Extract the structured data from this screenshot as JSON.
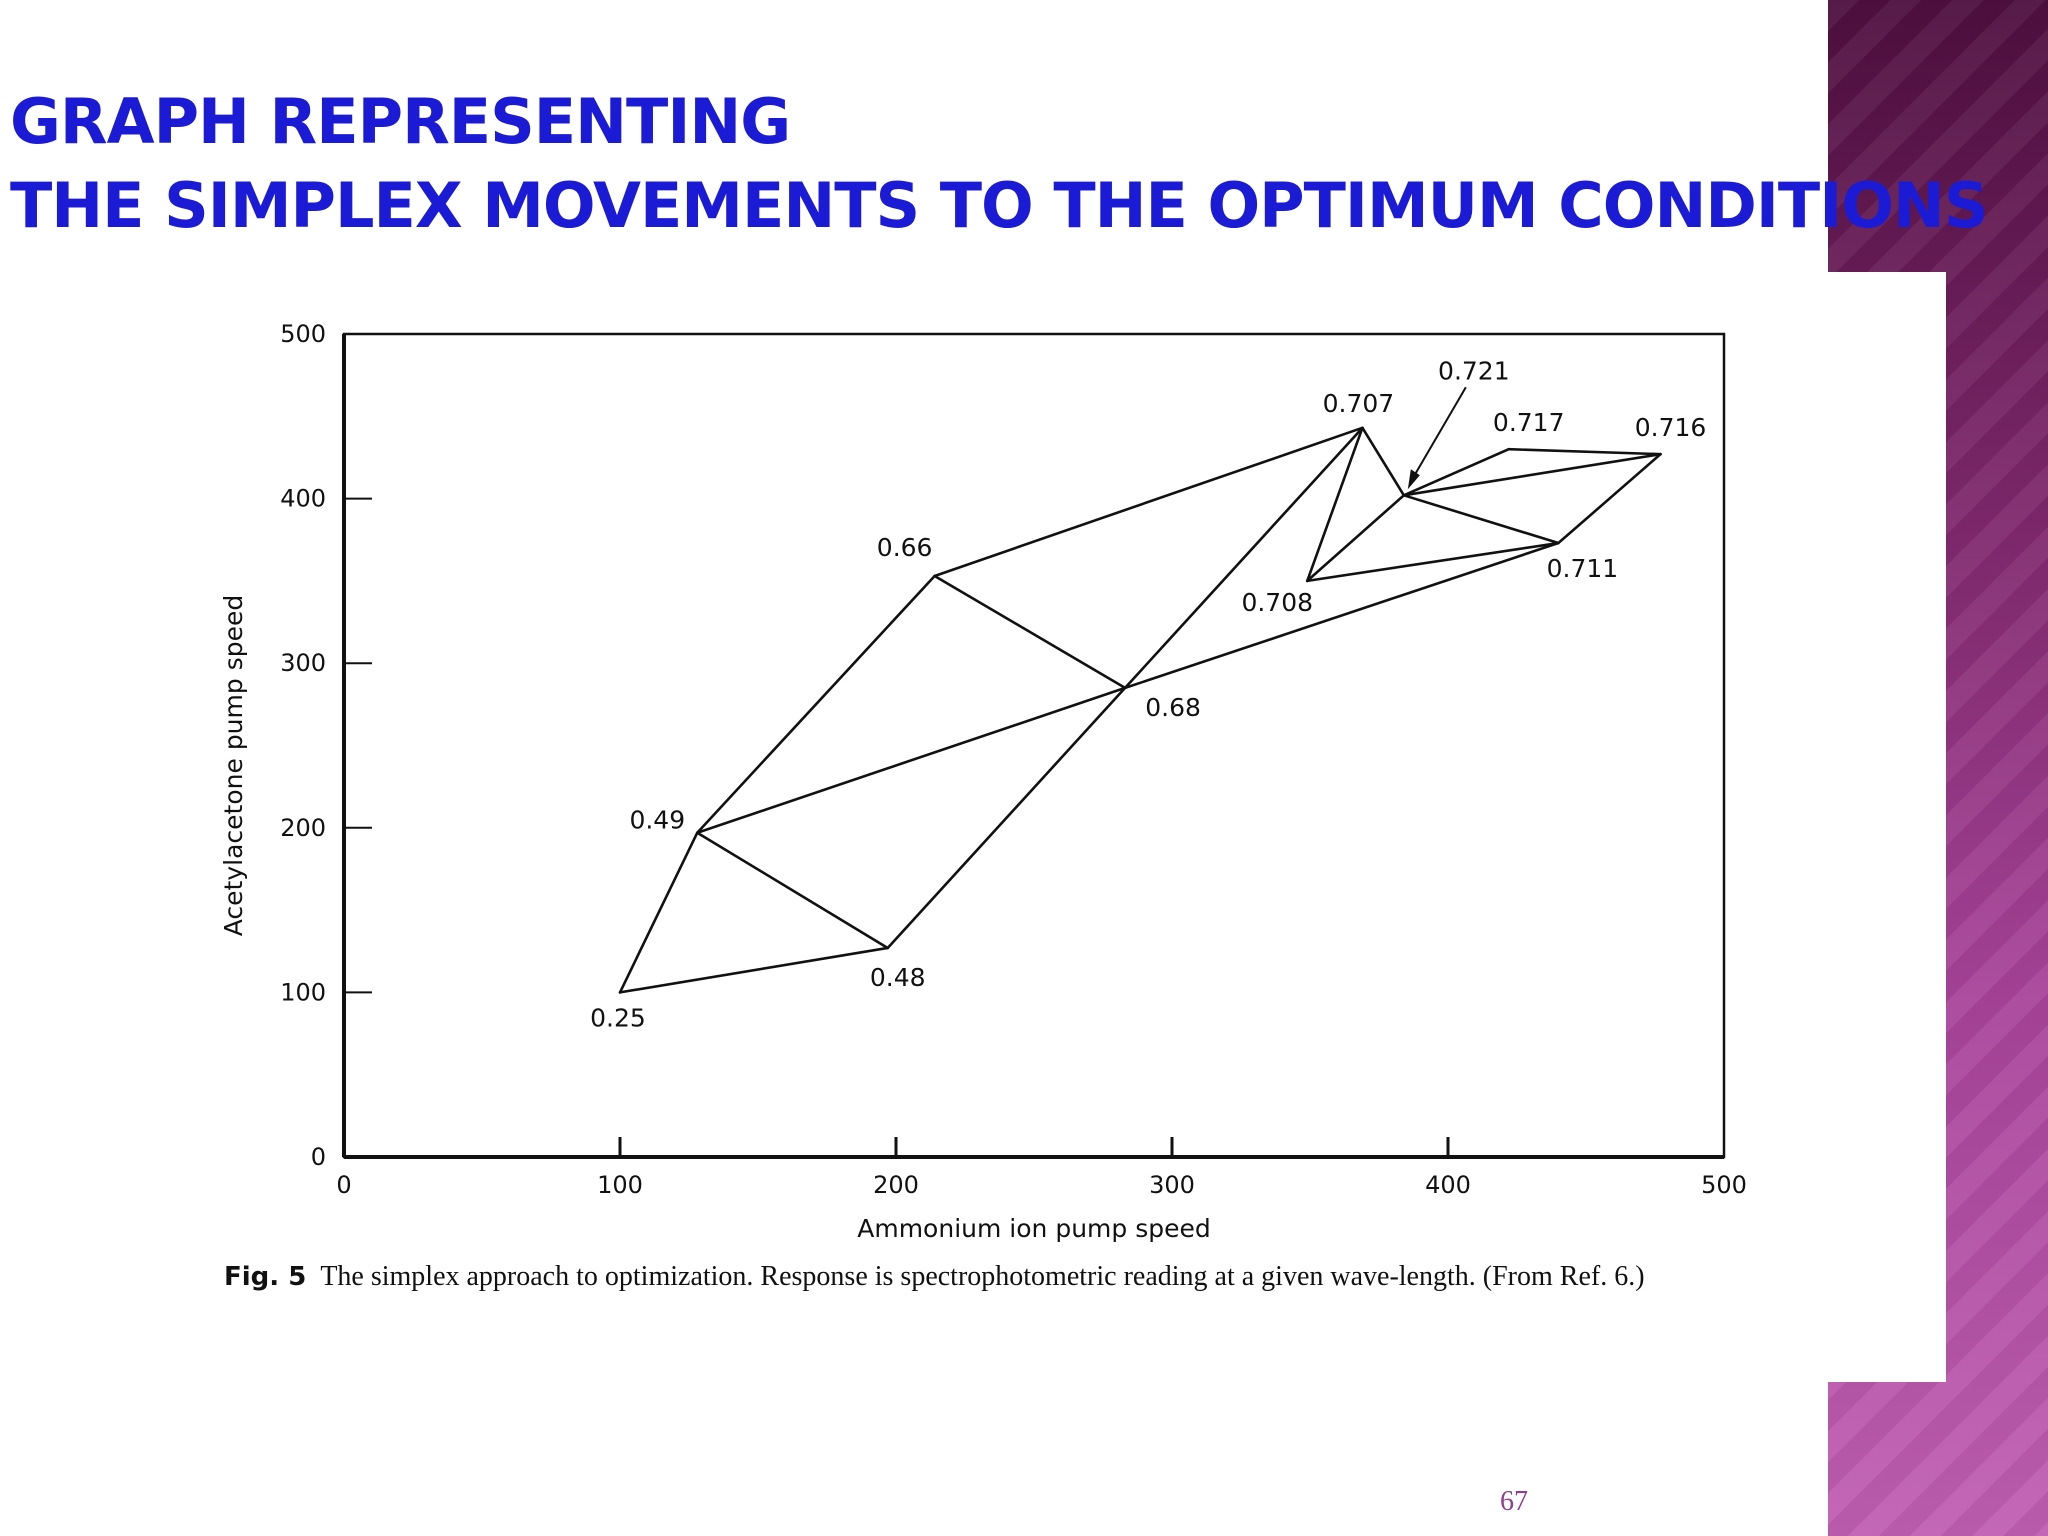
{
  "slide": {
    "title_lines": [
      "GRAPH REPRESENTING",
      "THE SIMPLEX MOVEMENTS TO THE OPTIMUM CONDITIONS"
    ],
    "caption_fig": "Fig. 5",
    "caption_text": "The simplex approach to optimization. Response is spectrophotometric reading at a given wave-length. (From Ref. 6.)",
    "page_number": "67",
    "colors": {
      "title": "#1b1bd6",
      "side_band_top": "#4e0f3f",
      "side_band_bottom": "#c05fb2",
      "page_number": "#8e3e8e"
    }
  },
  "chart_data": {
    "type": "line",
    "title": "",
    "xlabel": "Ammonium ion pump speed",
    "ylabel": "Acetylacetone pump speed",
    "xlim": [
      0,
      500
    ],
    "ylim": [
      0,
      500
    ],
    "xticks": [
      0,
      100,
      200,
      300,
      400,
      500
    ],
    "yticks": [
      0,
      100,
      200,
      300,
      400,
      500
    ],
    "grid": false,
    "vertices": [
      {
        "id": "a",
        "x": 100,
        "y": 100,
        "label": "0.25"
      },
      {
        "id": "b",
        "x": 128,
        "y": 197,
        "label": "0.49"
      },
      {
        "id": "c",
        "x": 197,
        "y": 127,
        "label": "0.48"
      },
      {
        "id": "d",
        "x": 214,
        "y": 353,
        "label": "0.66"
      },
      {
        "id": "e",
        "x": 283,
        "y": 285,
        "label": "0.68"
      },
      {
        "id": "f",
        "x": 369,
        "y": 443,
        "label": "0.707"
      },
      {
        "id": "g",
        "x": 349,
        "y": 350,
        "label": "0.708"
      },
      {
        "id": "h",
        "x": 384,
        "y": 402,
        "label": "0.721"
      },
      {
        "id": "i",
        "x": 440,
        "y": 373,
        "label": "0.711"
      },
      {
        "id": "j",
        "x": 422,
        "y": 430,
        "label": "0.717"
      },
      {
        "id": "k",
        "x": 477,
        "y": 427,
        "label": "0.716"
      }
    ],
    "edges": [
      [
        "a",
        "b"
      ],
      [
        "a",
        "c"
      ],
      [
        "b",
        "c"
      ],
      [
        "b",
        "d"
      ],
      [
        "b",
        "e"
      ],
      [
        "c",
        "e"
      ],
      [
        "d",
        "e"
      ],
      [
        "d",
        "f"
      ],
      [
        "e",
        "f"
      ],
      [
        "e",
        "i"
      ],
      [
        "f",
        "g"
      ],
      [
        "g",
        "h"
      ],
      [
        "g",
        "i"
      ],
      [
        "h",
        "i"
      ],
      [
        "f",
        "h"
      ],
      [
        "h",
        "j"
      ],
      [
        "h",
        "k"
      ],
      [
        "i",
        "k"
      ],
      [
        "j",
        "k"
      ]
    ]
  }
}
